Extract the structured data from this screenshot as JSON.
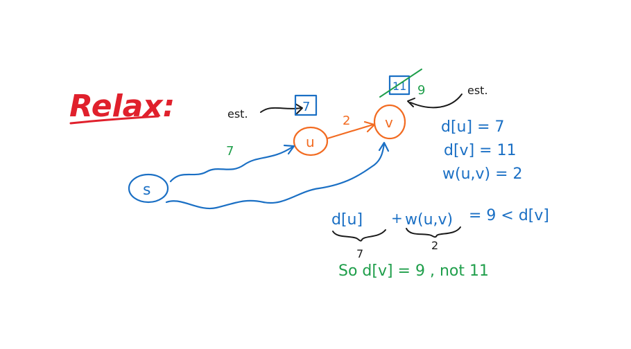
{
  "title": "Relax:",
  "nodes": {
    "s": "s",
    "u": "u",
    "v": "v"
  },
  "edges": {
    "s_to_u_weight": "7",
    "u_to_v_weight": "2"
  },
  "estimates": {
    "label_u": "est.",
    "label_v": "est.",
    "u_value": "7",
    "v_old_value": "11",
    "v_new_value": "9"
  },
  "facts": [
    "d[u] = 7",
    "d[v] = 11",
    "w(u,v) = 2"
  ],
  "inequality": {
    "left": "d[u]",
    "plus": "+",
    "middle": "w(u,v)",
    "right": "= 9 < d[v]",
    "under_left": "7",
    "under_middle": "2"
  },
  "conclusion": "So  d[v] = 9 , not 11",
  "colors": {
    "title": "#e0202c",
    "blue": "#1a6fc4",
    "orange": "#f26b21",
    "green": "#1e9e4a",
    "black": "#1a1a1a"
  }
}
